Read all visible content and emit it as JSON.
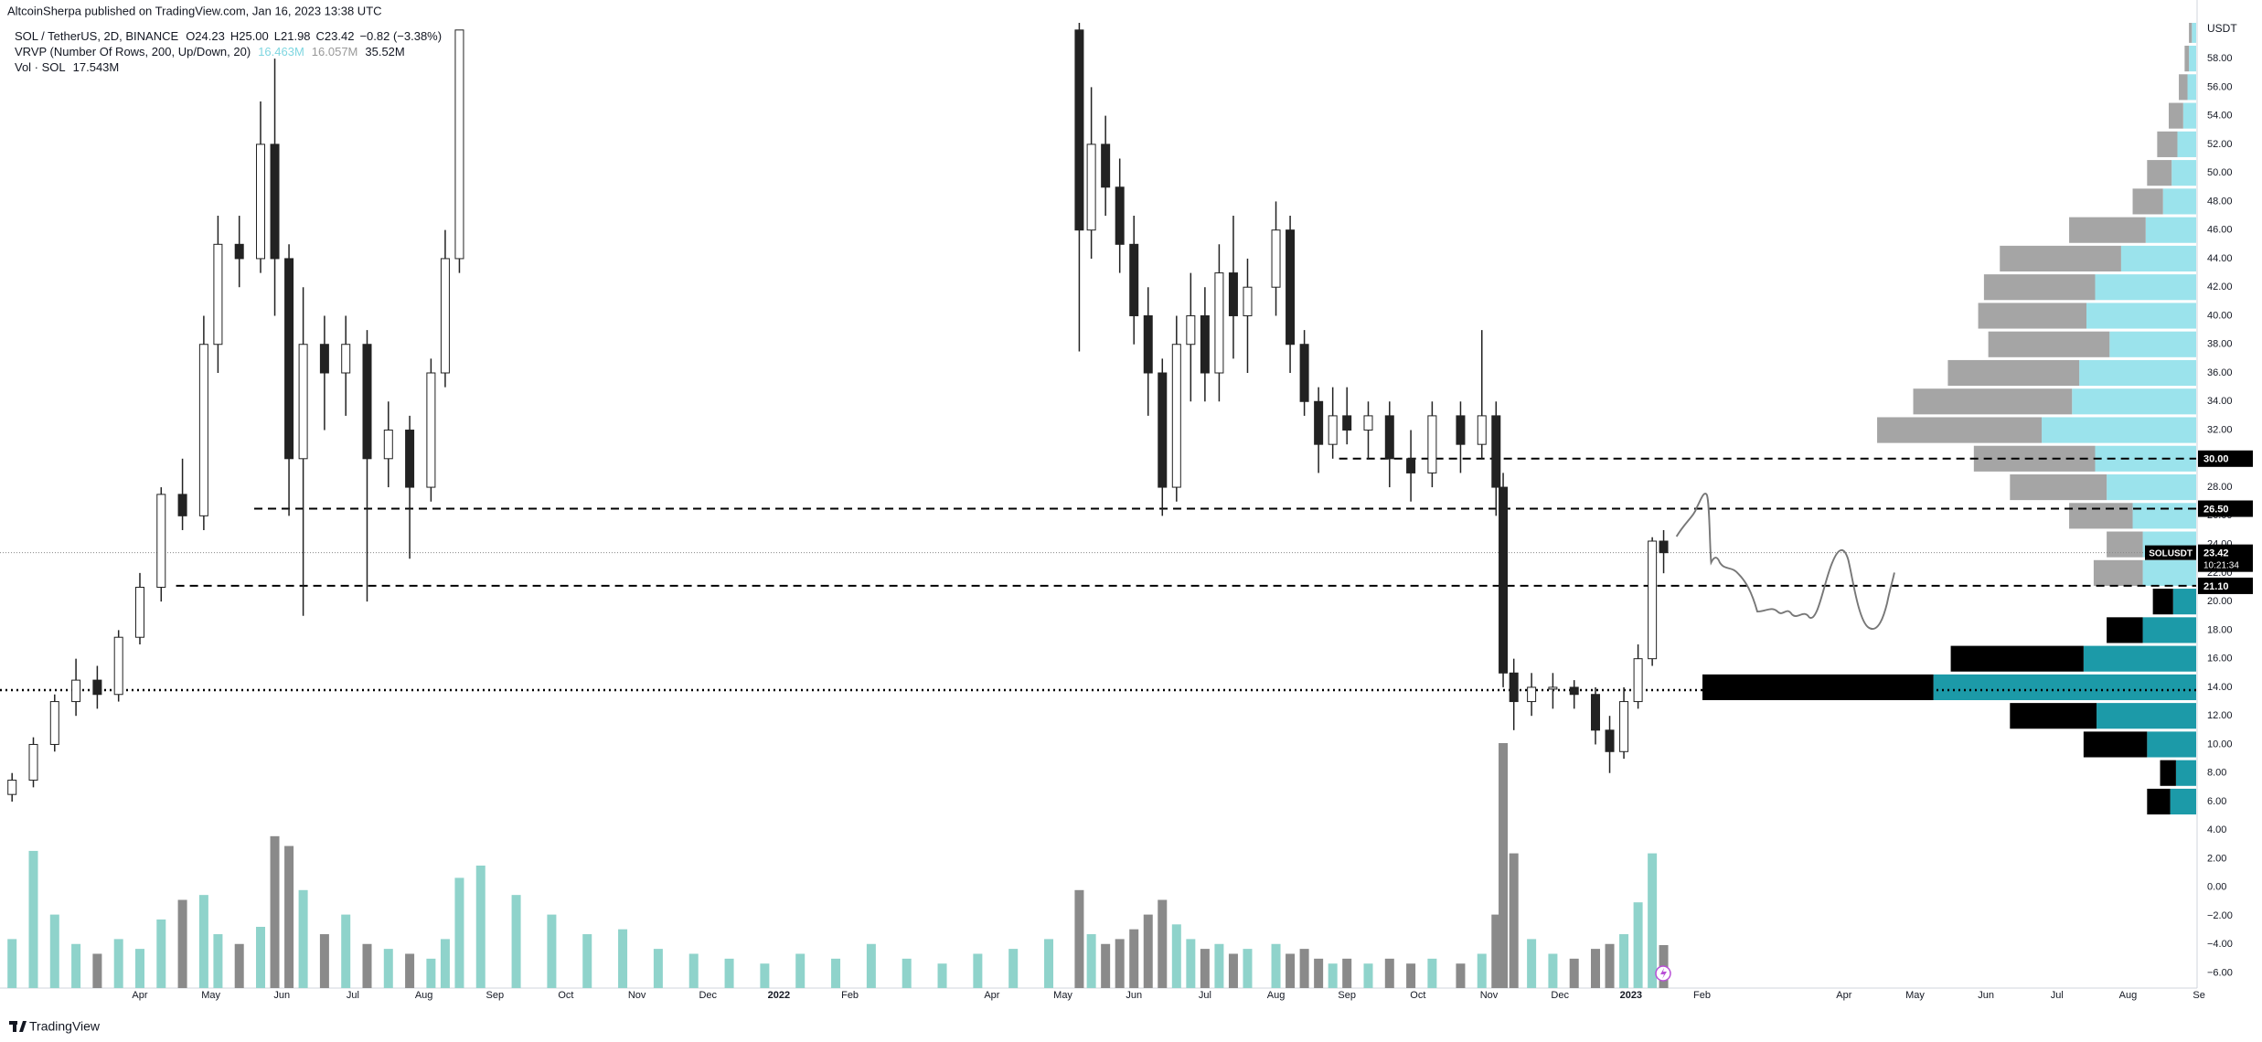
{
  "chart_data": {
    "type": "candlestick",
    "title": "AltcoinSherpa published on TradingView.com, Jan 16, 2023 13:38 UTC",
    "symbol": "SOL / TetherUS, 2D, BINANCE",
    "ohlc": [
      "O24.23",
      "H25.00",
      "L21.98",
      "C23.42",
      "−0.82 (−3.38%)"
    ],
    "vrvp": {
      "label": "VRVP (Number Of Rows, 200, Up/Down, 20)",
      "values": [
        "16.463M",
        "16.057M",
        "35.52M"
      ]
    },
    "volume_label": {
      "label": "Vol · SOL",
      "value": "17.543M"
    },
    "axis_unit": "USDT",
    "footer": "TradingView",
    "xlim": [
      -0.97,
      29.96
    ],
    "ylim": [
      -7.05,
      60.5
    ],
    "xticks": [
      {
        "value": 1,
        "label": "Apr"
      },
      {
        "value": 2,
        "label": "May"
      },
      {
        "value": 3,
        "label": "Jun"
      },
      {
        "value": 4,
        "label": "Jul"
      },
      {
        "value": 5,
        "label": "Aug"
      },
      {
        "value": 6,
        "label": "Sep"
      },
      {
        "value": 7,
        "label": "Oct"
      },
      {
        "value": 8,
        "label": "Nov"
      },
      {
        "value": 9,
        "label": "Dec"
      },
      {
        "value": 10,
        "label": "2022"
      },
      {
        "value": 11,
        "label": "Feb"
      },
      {
        "value": 13,
        "label": "Apr"
      },
      {
        "value": 14,
        "label": "May"
      },
      {
        "value": 15,
        "label": "Jun"
      },
      {
        "value": 16,
        "label": "Jul"
      },
      {
        "value": 17,
        "label": "Aug"
      },
      {
        "value": 18,
        "label": "Sep"
      },
      {
        "value": 19,
        "label": "Oct"
      },
      {
        "value": 20,
        "label": "Nov"
      },
      {
        "value": 21,
        "label": "Dec"
      },
      {
        "value": 22,
        "label": "2023"
      },
      {
        "value": 23,
        "label": "Feb"
      },
      {
        "value": 25,
        "label": "Apr"
      },
      {
        "value": 26,
        "label": "May"
      },
      {
        "value": 27,
        "label": "Jun"
      },
      {
        "value": 28,
        "label": "Jul"
      },
      {
        "value": 29,
        "label": "Aug"
      },
      {
        "value": 30,
        "label": "Se"
      }
    ],
    "yticks": [
      {
        "value": 58,
        "label": "58.00"
      },
      {
        "value": 56,
        "label": "56.00"
      },
      {
        "value": 54,
        "label": "54.00"
      },
      {
        "value": 52,
        "label": "52.00"
      },
      {
        "value": 50,
        "label": "50.00"
      },
      {
        "value": 48,
        "label": "48.00"
      },
      {
        "value": 46,
        "label": "46.00"
      },
      {
        "value": 44,
        "label": "44.00"
      },
      {
        "value": 42,
        "label": "42.00"
      },
      {
        "value": 40,
        "label": "40.00"
      },
      {
        "value": 38,
        "label": "38.00"
      },
      {
        "value": 36,
        "label": "36.00"
      },
      {
        "value": 34,
        "label": "34.00"
      },
      {
        "value": 32,
        "label": "32.00"
      },
      {
        "value": 30,
        "label": "30.00"
      },
      {
        "value": 28,
        "label": "28.00"
      },
      {
        "value": 26,
        "label": "26.00"
      },
      {
        "value": 24,
        "label": "24.00"
      },
      {
        "value": 22,
        "label": "22.00"
      },
      {
        "value": 20,
        "label": "20.00"
      },
      {
        "value": 18,
        "label": "18.00"
      },
      {
        "value": 16,
        "label": "16.00"
      },
      {
        "value": 14,
        "label": "14.00"
      },
      {
        "value": 12,
        "label": "12.00"
      },
      {
        "value": 10,
        "label": "10.00"
      },
      {
        "value": 8,
        "label": "8.00"
      },
      {
        "value": 6,
        "label": "6.00"
      },
      {
        "value": 4,
        "label": "4.00"
      },
      {
        "value": 2,
        "label": "2.00"
      },
      {
        "value": 0,
        "label": "0.00"
      },
      {
        "value": -2,
        "label": "−2.00"
      },
      {
        "value": -4,
        "label": "−4.00"
      },
      {
        "value": -6,
        "label": "−6.00"
      }
    ],
    "up_color": "#ffffff",
    "down_color": "#222222",
    "volume_up_color": "#8fd3cb",
    "volume_down_color": "#8a8a8a",
    "candles": {
      "x": [
        -0.8,
        -0.5,
        -0.2,
        0.1,
        0.4,
        0.7,
        1.0,
        1.3,
        1.6,
        1.9,
        2.1,
        2.4,
        2.7,
        2.9,
        3.1,
        3.3,
        3.6,
        3.9,
        4.2,
        4.5,
        4.8,
        5.1,
        5.3,
        5.5,
        5.8,
        6.3,
        6.8,
        7.3,
        7.8,
        8.3,
        8.8,
        9.3,
        9.8,
        10.3,
        10.8,
        11.3,
        11.8,
        12.3,
        12.8,
        13.3,
        13.8,
        14.23,
        14.4,
        14.6,
        14.8,
        15.0,
        15.2,
        15.4,
        15.6,
        15.8,
        16.0,
        16.2,
        16.4,
        16.6,
        17.0,
        17.2,
        17.4,
        17.6,
        17.8,
        18.0,
        18.3,
        18.6,
        18.9,
        19.2,
        19.6,
        19.9,
        20.1,
        20.2,
        20.35,
        20.6,
        20.9,
        21.2,
        21.5,
        21.7,
        21.9,
        22.1,
        22.3,
        22.46
      ],
      "open": [
        6.5,
        7.5,
        10,
        13,
        14.5,
        13.5,
        17.5,
        21,
        27.5,
        26,
        38,
        45,
        44,
        52,
        44,
        30,
        38,
        36,
        38,
        30,
        32,
        28,
        36,
        44,
        null,
        null,
        null,
        null,
        null,
        null,
        null,
        null,
        null,
        null,
        null,
        null,
        null,
        null,
        null,
        null,
        null,
        60,
        46,
        52,
        49,
        45,
        40,
        36,
        28,
        38,
        40,
        36,
        43,
        40,
        42,
        46,
        38,
        34,
        31,
        33,
        32,
        33,
        30,
        29,
        33,
        31,
        33,
        28,
        15,
        13,
        14,
        14,
        13.5,
        11,
        9.5,
        13,
        16,
        24.23
      ],
      "high": [
        8,
        10.5,
        13.5,
        16,
        15.5,
        18,
        22,
        28,
        30,
        40,
        47,
        47,
        55,
        58,
        45,
        42,
        40,
        40,
        39,
        34,
        33,
        37,
        46,
        60,
        null,
        null,
        null,
        null,
        null,
        null,
        null,
        null,
        null,
        null,
        null,
        null,
        null,
        null,
        null,
        null,
        null,
        61,
        56,
        54,
        51,
        47,
        42,
        37,
        40,
        43,
        42,
        45,
        47,
        44,
        48,
        47,
        39,
        35,
        35,
        35,
        34,
        34,
        32,
        34,
        34,
        39,
        34,
        29,
        16,
        15,
        15,
        14.5,
        14,
        12,
        14,
        17,
        24.5,
        25
      ],
      "low": [
        6,
        7,
        9.5,
        12,
        12.5,
        13,
        17,
        20,
        25,
        25,
        36,
        42,
        43,
        40,
        26,
        19,
        32,
        33,
        20,
        28,
        23,
        27,
        35,
        43,
        null,
        null,
        null,
        null,
        null,
        null,
        null,
        null,
        null,
        null,
        null,
        null,
        null,
        null,
        null,
        null,
        null,
        37.5,
        44,
        47,
        43,
        38,
        33,
        26,
        27,
        34,
        34,
        34,
        37,
        36,
        40,
        36,
        33,
        29,
        30,
        31,
        30,
        28,
        27,
        28,
        29,
        30,
        26,
        14,
        11,
        12,
        12.5,
        12.5,
        10,
        8,
        9,
        12.5,
        15.5,
        21.98
      ],
      "close": [
        7.5,
        10,
        13,
        14.5,
        13.5,
        17.5,
        21,
        27.5,
        26,
        38,
        45,
        44,
        52,
        44,
        30,
        38,
        36,
        38,
        30,
        32,
        28,
        36,
        44,
        60,
        null,
        null,
        null,
        null,
        null,
        null,
        null,
        null,
        null,
        null,
        null,
        null,
        null,
        null,
        null,
        null,
        null,
        46,
        52,
        49,
        45,
        40,
        36,
        28,
        38,
        40,
        36,
        43,
        40,
        42,
        46,
        38,
        34,
        31,
        33,
        32,
        33,
        30,
        29,
        33,
        31,
        33,
        28,
        15,
        13,
        14,
        14,
        13.5,
        11,
        9.5,
        13,
        16,
        24.23,
        23.42
      ],
      "volume": [
        20,
        56,
        30,
        18,
        14,
        20,
        16,
        28,
        36,
        38,
        22,
        18,
        25,
        62,
        58,
        40,
        22,
        30,
        18,
        16,
        14,
        12,
        20,
        45,
        50,
        38,
        30,
        22,
        24,
        16,
        14,
        12,
        10,
        14,
        12,
        18,
        12,
        10,
        14,
        16,
        20,
        40,
        22,
        18,
        20,
        24,
        30,
        36,
        26,
        20,
        16,
        18,
        14,
        16,
        18,
        14,
        16,
        12,
        10,
        12,
        10,
        12,
        10,
        12,
        10,
        14,
        30,
        100,
        55,
        20,
        14,
        12,
        16,
        18,
        22,
        35,
        55,
        17.543
      ]
    },
    "profile": {
      "rows": [
        60,
        58,
        56,
        54,
        52,
        50,
        48,
        46,
        44,
        42,
        40,
        38,
        36,
        34,
        32,
        30,
        28,
        26,
        24,
        22,
        20,
        18,
        16,
        14,
        12,
        10,
        8,
        6
      ],
      "down": [
        0.2,
        0.3,
        0.6,
        1.0,
        1.4,
        1.7,
        2.1,
        5.3,
        8.4,
        7.7,
        7.5,
        8.4,
        9.1,
        11.0,
        11.4,
        8.4,
        6.7,
        4.4,
        2.5,
        3.4,
        1.4,
        2.5,
        9.2,
        16.0,
        6.0,
        4.4,
        1.1,
        1.6
      ],
      "up": [
        0.3,
        0.5,
        0.6,
        0.9,
        1.3,
        1.7,
        2.3,
        3.5,
        5.2,
        7.0,
        7.6,
        6.0,
        8.1,
        8.6,
        10.7,
        7.0,
        6.2,
        4.4,
        3.7,
        3.7,
        1.6,
        3.7,
        7.8,
        18.2,
        6.9,
        3.4,
        1.4,
        1.8
      ],
      "down_colors": [
        "#a5a5a5",
        "#a5a5a5",
        "#a5a5a5",
        "#a5a5a5",
        "#a5a5a5",
        "#a5a5a5",
        "#a5a5a5",
        "#a5a5a5",
        "#a5a5a5",
        "#a5a5a5",
        "#a5a5a5",
        "#a5a5a5",
        "#a5a5a5",
        "#a5a5a5",
        "#a5a5a5",
        "#a5a5a5",
        "#a5a5a5",
        "#a5a5a5",
        "#a5a5a5",
        "#a5a5a5",
        "#000000",
        "#000000",
        "#000000",
        "#000000",
        "#000000",
        "#000000",
        "#000000",
        "#000000"
      ],
      "up_colors": [
        "#9be3ec",
        "#9be3ec",
        "#9be3ec",
        "#9be3ec",
        "#9be3ec",
        "#9be3ec",
        "#9be3ec",
        "#9be3ec",
        "#9be3ec",
        "#9be3ec",
        "#9be3ec",
        "#9be3ec",
        "#9be3ec",
        "#9be3ec",
        "#9be3ec",
        "#9be3ec",
        "#9be3ec",
        "#9be3ec",
        "#9be3ec",
        "#9be3ec",
        "#1c9aa8",
        "#1c9aa8",
        "#1c9aa8",
        "#1c9aa8",
        "#1c9aa8",
        "#1c9aa8",
        "#1c9aa8",
        "#1c9aa8"
      ]
    },
    "levels": [
      {
        "value": 30,
        "label": "30.00",
        "from": 17.89
      },
      {
        "value": 26.5,
        "label": "26.50",
        "from": 2.61
      },
      {
        "value": 21.1,
        "label": "21.10",
        "from": 1.51
      }
    ],
    "dotted_level": 13.8,
    "last": {
      "symbol": "SOLUSDT",
      "value": 23.42,
      "countdown": "10:21:34"
    }
  }
}
